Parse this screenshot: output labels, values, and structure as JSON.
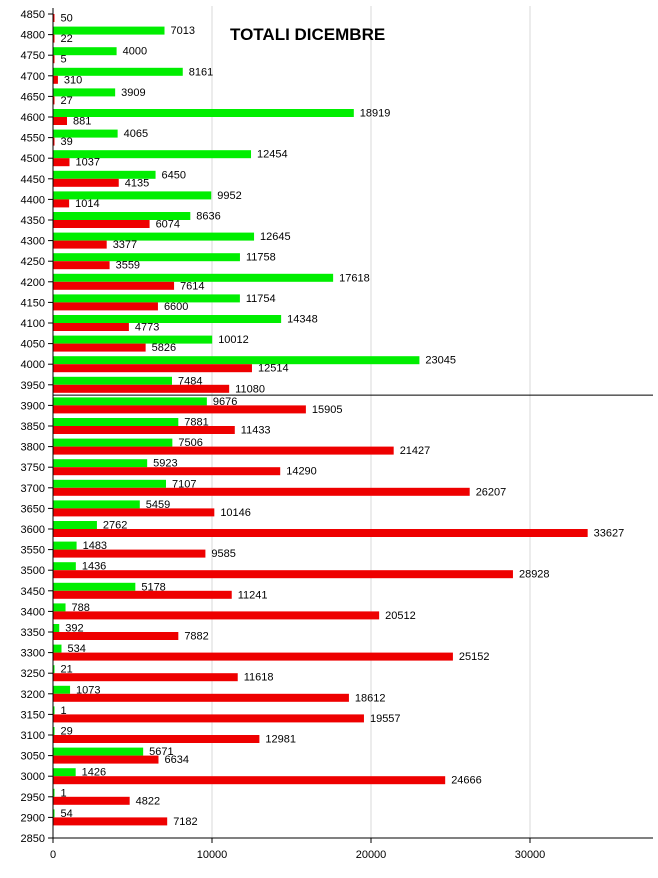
{
  "chart_data": {
    "type": "bar",
    "orientation": "horizontal",
    "title": "TOTALI DICEMBRE",
    "xlabel": "",
    "ylabel": "",
    "xlim": [
      0,
      37500
    ],
    "x_ticks": [
      0,
      10000,
      20000,
      30000
    ],
    "grid": true,
    "categories": [
      4850,
      4800,
      4750,
      4700,
      4650,
      4600,
      4550,
      4500,
      4450,
      4400,
      4350,
      4300,
      4250,
      4200,
      4150,
      4100,
      4050,
      4000,
      3950,
      3900,
      3850,
      3800,
      3750,
      3700,
      3650,
      3600,
      3550,
      3500,
      3450,
      3400,
      3350,
      3300,
      3250,
      3200,
      3150,
      3100,
      3050,
      3000,
      2950,
      2900,
      2850
    ],
    "series": [
      {
        "color": "#00ee00",
        "values": [
          null,
          7013,
          4000,
          8161,
          3909,
          18919,
          4065,
          12454,
          6450,
          9952,
          8636,
          12645,
          11758,
          17618,
          11754,
          14348,
          10012,
          23045,
          7484,
          9676,
          7881,
          7506,
          5923,
          7107,
          5459,
          2762,
          1483,
          1436,
          5178,
          788,
          392,
          534,
          21,
          1073,
          1,
          29,
          5671,
          1426,
          1,
          54,
          null
        ]
      },
      {
        "color": "#ee0000",
        "values": [
          50,
          22,
          5,
          310,
          27,
          881,
          39,
          1037,
          4135,
          1014,
          6074,
          3377,
          3559,
          7614,
          6600,
          4773,
          5826,
          12514,
          11080,
          15905,
          11433,
          21427,
          14290,
          26207,
          10146,
          33627,
          9585,
          28928,
          11241,
          20512,
          7882,
          25152,
          11618,
          18612,
          19557,
          12981,
          6634,
          24666,
          4822,
          7182,
          null
        ]
      }
    ],
    "reference_line_between": [
      3950,
      3900
    ]
  }
}
